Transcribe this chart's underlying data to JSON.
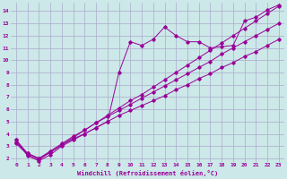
{
  "xlabel": "Windchill (Refroidissement éolien,°C)",
  "ylabel": "",
  "background_color": "#cce8e8",
  "grid_color": "#aaaacc",
  "line_color": "#990099",
  "xlim": [
    -0.5,
    23.5
  ],
  "ylim": [
    1.7,
    14.7
  ],
  "yticks": [
    2,
    3,
    4,
    5,
    6,
    7,
    8,
    9,
    10,
    11,
    12,
    13,
    14
  ],
  "xticks": [
    0,
    1,
    2,
    3,
    4,
    5,
    6,
    7,
    8,
    9,
    10,
    11,
    12,
    13,
    14,
    15,
    16,
    17,
    18,
    19,
    20,
    21,
    22,
    23
  ],
  "series1_x": [
    0,
    1,
    2,
    3,
    4,
    5,
    6,
    7,
    8,
    9,
    10,
    11,
    12,
    13,
    14,
    15,
    16,
    17,
    18,
    19,
    20,
    21,
    22,
    23
  ],
  "series1_y": [
    3.5,
    2.2,
    1.8,
    2.3,
    3.0,
    3.5,
    4.0,
    4.5,
    5.0,
    9.0,
    11.5,
    11.2,
    11.7,
    12.7,
    12.0,
    11.5,
    11.5,
    11.0,
    11.1,
    11.2,
    13.2,
    13.5,
    14.1,
    14.5
  ],
  "series2_x": [
    0,
    1,
    2,
    3,
    4,
    5,
    6,
    7,
    8,
    9,
    10,
    11,
    12,
    13,
    14,
    15,
    16,
    17,
    18,
    19,
    20,
    21,
    22,
    23
  ],
  "series2_y": [
    3.5,
    2.4,
    2.0,
    2.5,
    3.1,
    3.6,
    4.0,
    4.5,
    5.0,
    5.5,
    5.9,
    6.3,
    6.7,
    7.1,
    7.6,
    8.0,
    8.5,
    8.9,
    9.4,
    9.8,
    10.3,
    10.7,
    11.2,
    11.7
  ],
  "series3_x": [
    0,
    1,
    2,
    3,
    4,
    5,
    6,
    7,
    8,
    9,
    10,
    11,
    12,
    13,
    14,
    15,
    16,
    17,
    18,
    19,
    20,
    21,
    22,
    23
  ],
  "series3_y": [
    3.3,
    2.4,
    2.0,
    2.6,
    3.2,
    3.8,
    4.3,
    4.9,
    5.4,
    5.9,
    6.4,
    6.9,
    7.4,
    7.9,
    8.4,
    8.9,
    9.4,
    9.9,
    10.5,
    11.0,
    11.5,
    12.0,
    12.5,
    13.0
  ],
  "series4_x": [
    0,
    1,
    2,
    3,
    4,
    5,
    6,
    7,
    8,
    9,
    10,
    11,
    12,
    13,
    14,
    15,
    16,
    17,
    18,
    19,
    20,
    21,
    22,
    23
  ],
  "series4_y": [
    3.2,
    2.3,
    1.9,
    2.5,
    3.1,
    3.7,
    4.3,
    4.9,
    5.5,
    6.1,
    6.7,
    7.2,
    7.8,
    8.4,
    9.0,
    9.6,
    10.2,
    10.8,
    11.4,
    12.0,
    12.6,
    13.2,
    13.8,
    14.4
  ]
}
